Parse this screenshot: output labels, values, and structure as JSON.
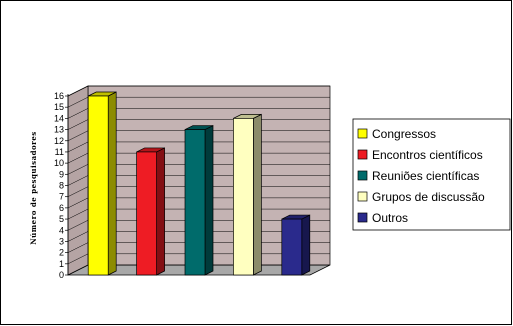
{
  "chart_data": {
    "type": "bar",
    "three_d": true,
    "categories": [
      "Congressos",
      "Encontros científicos",
      "Reuniões científicas",
      "Grupos de discussão",
      "Outros"
    ],
    "values": [
      16,
      11,
      13,
      14,
      5
    ],
    "colors": [
      "#ffff00",
      "#ee1c24",
      "#006b6b",
      "#ffffc0",
      "#2a2a8c"
    ],
    "title": "",
    "xlabel": "",
    "ylabel": "Número de pesquisadores",
    "ylim": [
      0,
      16
    ],
    "yticks": [
      0,
      1,
      2,
      3,
      4,
      5,
      6,
      7,
      8,
      9,
      10,
      11,
      12,
      13,
      14,
      15,
      16
    ],
    "grid": true,
    "wall_color": "#c4b3b3",
    "legend_position": "right"
  }
}
